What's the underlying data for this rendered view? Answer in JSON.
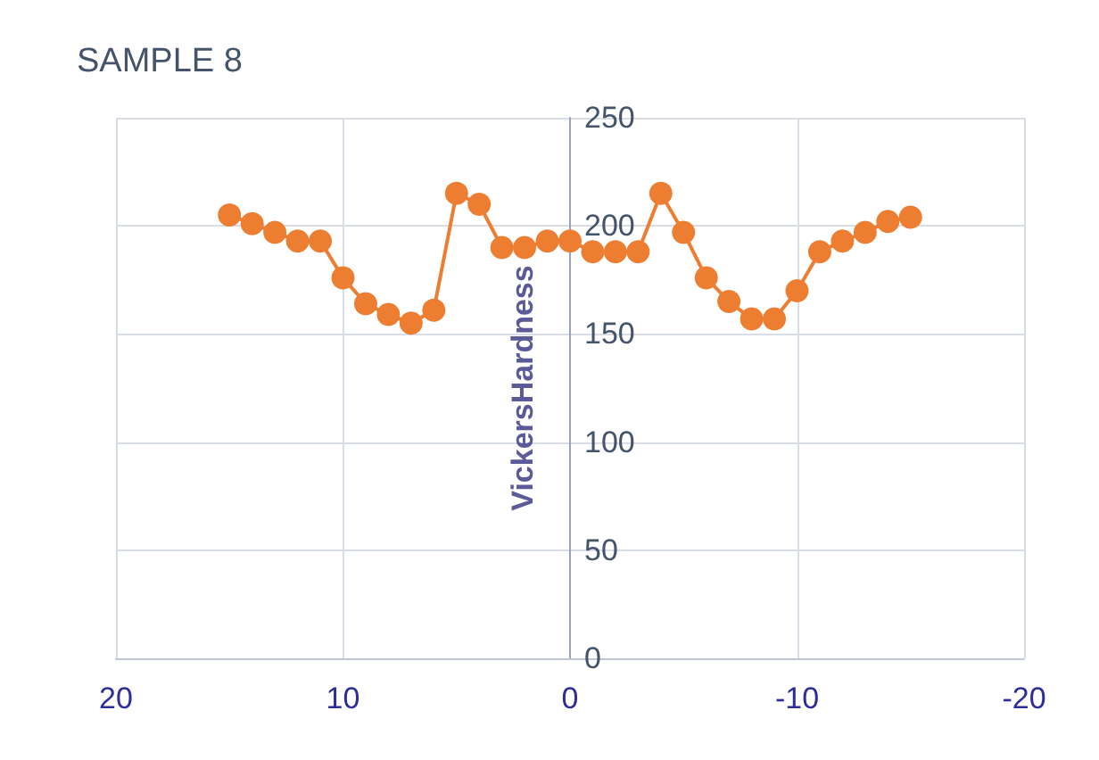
{
  "chart_data": {
    "type": "line",
    "title": "SAMPLE 8",
    "ylabel": "VickersHardness",
    "x": [
      15,
      14,
      13,
      12,
      11,
      10,
      9,
      8,
      7,
      6,
      5,
      4,
      3,
      2,
      1,
      0,
      -1,
      -2,
      -3,
      -4,
      -5,
      -6,
      -7,
      -8,
      -9,
      -10,
      -11,
      -12,
      -13,
      -14,
      -15
    ],
    "series": [
      {
        "color": "#ed7d31",
        "values": [
          205,
          201,
          197,
          193,
          193,
          176,
          164,
          159,
          155,
          161,
          215,
          210,
          190,
          190,
          193,
          193,
          188,
          188,
          188,
          215,
          197,
          176,
          165,
          157,
          157,
          170,
          188,
          193,
          197,
          202,
          204
        ]
      }
    ],
    "xlim": [
      20,
      -20
    ],
    "xticks": [
      20,
      10,
      0,
      -10,
      -20
    ],
    "ylim": [
      0,
      250
    ],
    "yticks": [
      0,
      50,
      100,
      150,
      200,
      250
    ],
    "grid": true,
    "marker": "circle",
    "line_style": "solid"
  }
}
